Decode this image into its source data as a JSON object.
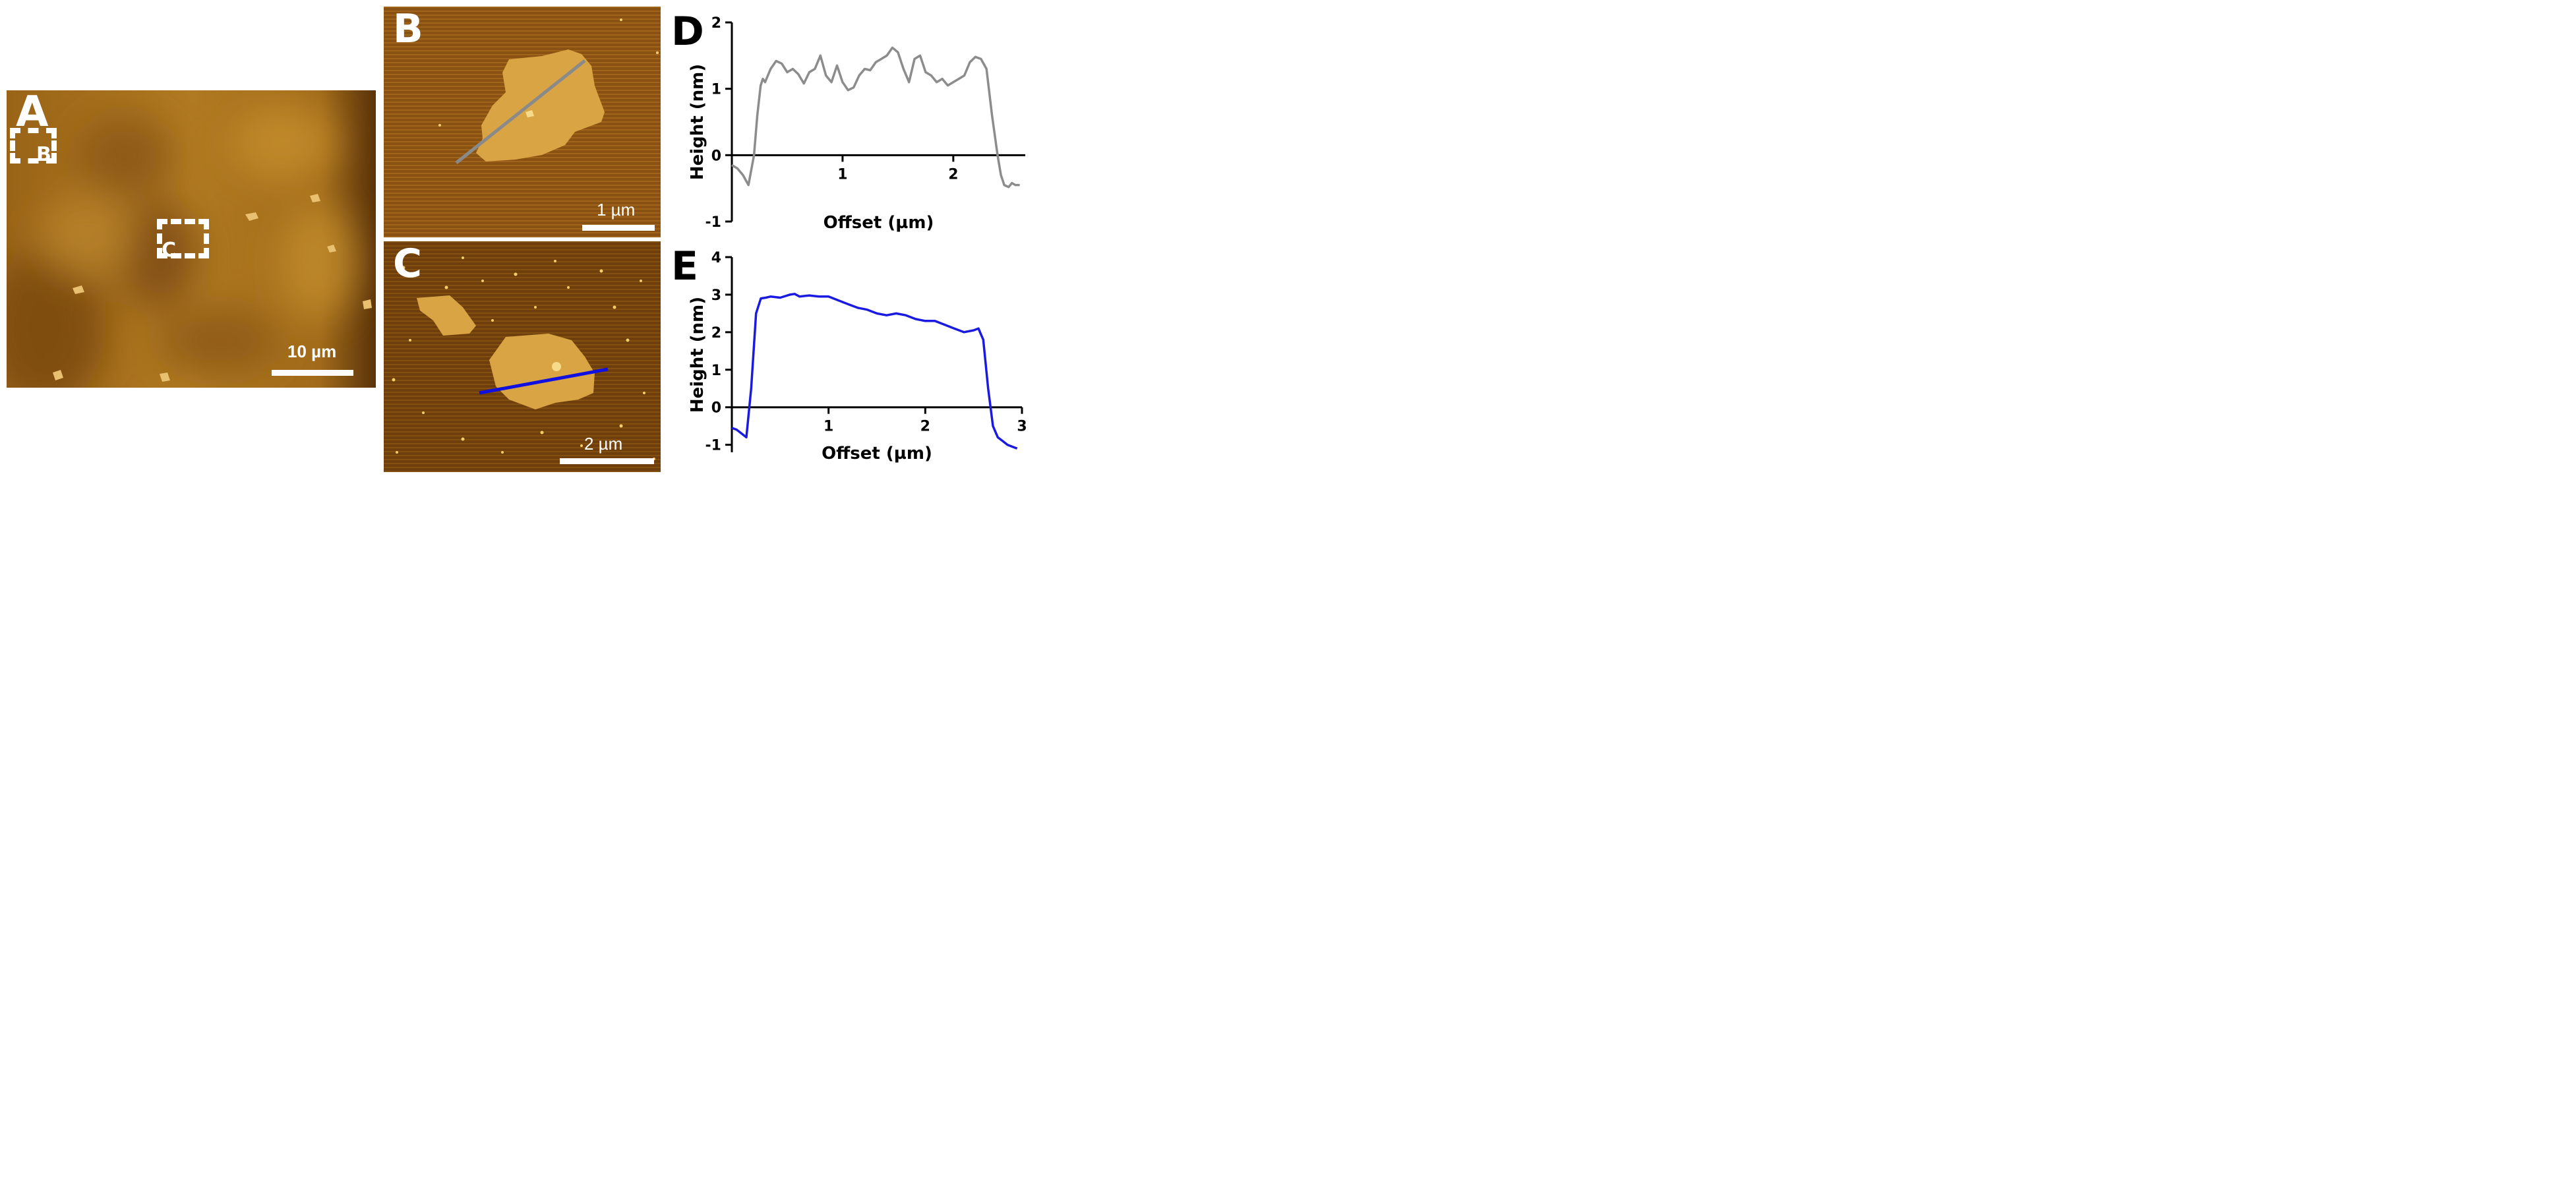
{
  "figure": {
    "panelA": {
      "letter": "A",
      "scale_label": "10 µm",
      "roi_b_label": "B",
      "roi_c_label": "C"
    },
    "panelB": {
      "letter": "B",
      "scale_label": "1 µm",
      "line_color": "#8a8a8a"
    },
    "panelC": {
      "letter": "C",
      "scale_label": "2 µm",
      "line_color": "#1010e0"
    },
    "panelD": {
      "letter": "D"
    },
    "panelE": {
      "letter": "E"
    }
  },
  "chart_data": [
    {
      "type": "line",
      "panel": "D",
      "xlabel": "Offset (µm)",
      "ylabel": "Height (nm)",
      "xlim": [
        0,
        2.65
      ],
      "ylim": [
        -1,
        2
      ],
      "xticks": [
        1,
        2
      ],
      "yticks": [
        -1,
        0,
        1,
        2
      ],
      "color": "#8c8c8c",
      "x": [
        0,
        0.05,
        0.1,
        0.15,
        0.2,
        0.23,
        0.26,
        0.28,
        0.3,
        0.35,
        0.4,
        0.45,
        0.5,
        0.55,
        0.6,
        0.65,
        0.7,
        0.75,
        0.8,
        0.85,
        0.9,
        0.95,
        1.0,
        1.05,
        1.1,
        1.15,
        1.2,
        1.25,
        1.3,
        1.35,
        1.4,
        1.45,
        1.5,
        1.55,
        1.6,
        1.65,
        1.7,
        1.75,
        1.8,
        1.85,
        1.9,
        1.95,
        2.0,
        2.05,
        2.1,
        2.15,
        2.2,
        2.25,
        2.3,
        2.35,
        2.4,
        2.43,
        2.46,
        2.5,
        2.53,
        2.56,
        2.6
      ],
      "y": [
        -0.15,
        -0.2,
        -0.3,
        -0.45,
        0.0,
        0.6,
        1.05,
        1.15,
        1.1,
        1.3,
        1.42,
        1.38,
        1.25,
        1.3,
        1.22,
        1.08,
        1.25,
        1.3,
        1.5,
        1.2,
        1.1,
        1.35,
        1.1,
        0.98,
        1.02,
        1.2,
        1.3,
        1.28,
        1.4,
        1.45,
        1.5,
        1.62,
        1.55,
        1.3,
        1.1,
        1.45,
        1.5,
        1.25,
        1.2,
        1.1,
        1.15,
        1.05,
        1.1,
        1.15,
        1.2,
        1.4,
        1.48,
        1.45,
        1.3,
        0.6,
        0.0,
        -0.3,
        -0.45,
        -0.48,
        -0.42,
        -0.45,
        -0.45
      ]
    },
    {
      "type": "line",
      "panel": "E",
      "xlabel": "Offset (µm)",
      "ylabel": "Height (nm)",
      "xlim": [
        0,
        3
      ],
      "ylim": [
        -1.2,
        4
      ],
      "xticks": [
        1,
        2,
        3
      ],
      "yticks": [
        -1,
        0,
        1,
        2,
        3,
        4
      ],
      "color": "#1a1ae0",
      "x": [
        0,
        0.05,
        0.1,
        0.15,
        0.2,
        0.25,
        0.3,
        0.35,
        0.4,
        0.5,
        0.6,
        0.65,
        0.7,
        0.8,
        0.9,
        1.0,
        1.1,
        1.2,
        1.3,
        1.4,
        1.5,
        1.6,
        1.7,
        1.8,
        1.9,
        2.0,
        2.1,
        2.2,
        2.3,
        2.4,
        2.5,
        2.55,
        2.6,
        2.65,
        2.7,
        2.75,
        2.8,
        2.85,
        2.9,
        2.95
      ],
      "y": [
        -0.55,
        -0.6,
        -0.7,
        -0.8,
        0.5,
        2.5,
        2.9,
        2.92,
        2.95,
        2.92,
        3.0,
        3.02,
        2.95,
        2.98,
        2.95,
        2.95,
        2.85,
        2.75,
        2.65,
        2.6,
        2.5,
        2.45,
        2.5,
        2.45,
        2.35,
        2.3,
        2.3,
        2.2,
        2.1,
        2.0,
        2.05,
        2.1,
        1.8,
        0.5,
        -0.5,
        -0.8,
        -0.9,
        -1.0,
        -1.05,
        -1.1
      ]
    }
  ]
}
